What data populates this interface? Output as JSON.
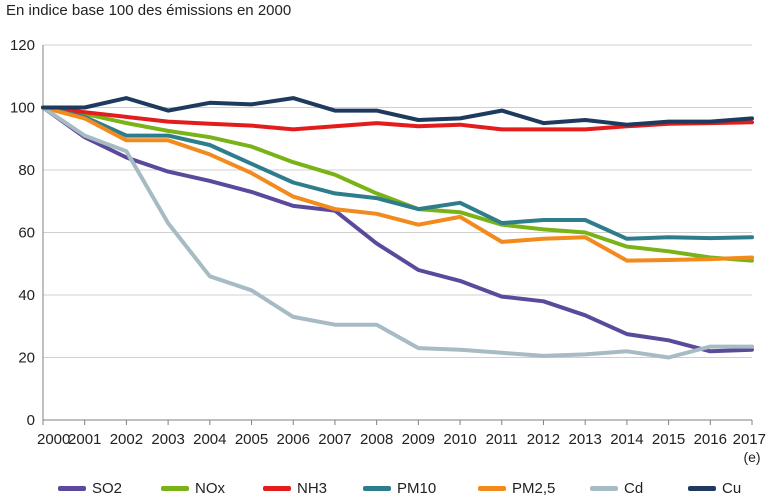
{
  "chart_data": {
    "type": "line",
    "subtitle": "En indice base 100 des émissions en 2000",
    "x": [
      "2000",
      "2001",
      "2002",
      "2003",
      "2004",
      "2005",
      "2006",
      "2007",
      "2008",
      "2009",
      "2010",
      "2011",
      "2012",
      "2013",
      "2014",
      "2015",
      "2016",
      "2017"
    ],
    "x_note": "(e)",
    "ylim": [
      0,
      120
    ],
    "yticks": [
      0,
      20,
      40,
      60,
      80,
      100,
      120
    ],
    "grid": true,
    "legend_position": "bottom",
    "series": [
      {
        "name": "SO2",
        "color": "#5b4a9b",
        "values": [
          100,
          90.5,
          84,
          79.5,
          76.5,
          73,
          68.5,
          67,
          56.5,
          48,
          44.5,
          39.5,
          38,
          33.5,
          27.5,
          25.5,
          22,
          22.5
        ]
      },
      {
        "name": "NOx",
        "color": "#7ab317",
        "values": [
          100,
          98,
          95,
          92.5,
          90.5,
          87.5,
          82.5,
          78.5,
          72.5,
          67.5,
          66.5,
          62.5,
          61,
          60,
          55.5,
          54,
          52,
          51
        ]
      },
      {
        "name": "NH3",
        "color": "#e31c1c",
        "values": [
          100,
          98.5,
          97,
          95.5,
          94.8,
          94.2,
          93,
          94,
          95,
          94,
          94.5,
          93,
          93,
          93,
          94,
          94.8,
          95,
          95.3
        ]
      },
      {
        "name": "PM10",
        "color": "#2e7d8c",
        "values": [
          100,
          97,
          91,
          91,
          88,
          82,
          76,
          72.5,
          71,
          67.5,
          69.5,
          63,
          64,
          64,
          58,
          58.5,
          58.2,
          58.5
        ]
      },
      {
        "name": "PM2,5",
        "color": "#f28a1d",
        "values": [
          100,
          96.5,
          89.5,
          89.5,
          85,
          79,
          71.5,
          67.5,
          66,
          62.5,
          65,
          57,
          58,
          58.5,
          51,
          51.2,
          51.5,
          52
        ]
      },
      {
        "name": "Cd",
        "color": "#a7bbc4",
        "values": [
          100,
          91,
          86,
          63,
          46,
          41.5,
          33,
          30.5,
          30.5,
          23,
          22.5,
          21.5,
          20.5,
          21,
          22,
          20,
          23.5,
          23.5
        ]
      },
      {
        "name": "Cu",
        "color": "#1f3a5f",
        "values": [
          100,
          100,
          103,
          99,
          101.5,
          101,
          103,
          99,
          99,
          96,
          96.5,
          99,
          95,
          96,
          94.5,
          95.5,
          95.5,
          96.5
        ]
      }
    ]
  }
}
